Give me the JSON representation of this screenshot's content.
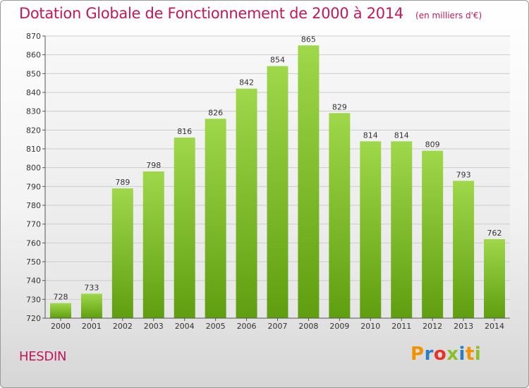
{
  "chart_data": {
    "type": "bar",
    "title": "Dotation Globale de Fonctionnement de 2000 à 2014",
    "subtitle": "(en milliers d'€)",
    "xlabel": "",
    "ylabel": "",
    "categories": [
      "2000",
      "2001",
      "2002",
      "2003",
      "2004",
      "2005",
      "2006",
      "2007",
      "2008",
      "2009",
      "2010",
      "2011",
      "2012",
      "2013",
      "2014"
    ],
    "values": [
      728,
      733,
      789,
      798,
      816,
      826,
      842,
      854,
      865,
      829,
      814,
      814,
      809,
      793,
      762
    ],
    "ylim": [
      720,
      870
    ],
    "yticks": [
      720,
      730,
      740,
      750,
      760,
      770,
      780,
      790,
      800,
      810,
      820,
      830,
      840,
      850,
      860,
      870
    ],
    "grid": "horizontal",
    "legend": "none",
    "bar_color": "#7dc21e"
  },
  "footer": {
    "commune": "HESDIN",
    "brand_letters": [
      {
        "ch": "P",
        "color": "#f39200"
      },
      {
        "ch": "r",
        "color": "#2a7fc4"
      },
      {
        "ch": "o",
        "color": "#e6332a"
      },
      {
        "ch": "x",
        "color": "#8bbf2a"
      },
      {
        "ch": "i",
        "color": "#2a7fc4"
      },
      {
        "ch": "t",
        "color": "#f39200"
      },
      {
        "ch": "i",
        "color": "#8bbf2a"
      }
    ]
  }
}
